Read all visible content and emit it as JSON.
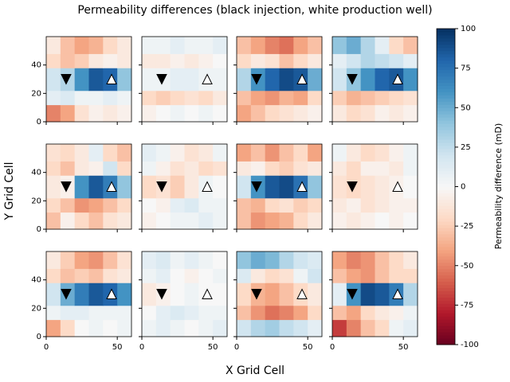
{
  "chart_data": {
    "type": "heatmap",
    "title": "Permeability differences (black injection, white production well)",
    "xlabel": "X Grid Cell",
    "ylabel": "Y Grid Cell",
    "xlim": [
      0,
      60
    ],
    "ylim": [
      0,
      60
    ],
    "xticks": [
      0,
      50
    ],
    "yticks": [
      0,
      20,
      40
    ],
    "x_edges": [
      0,
      10,
      20,
      30,
      40,
      50,
      60
    ],
    "y_edges": [
      0,
      12,
      22,
      38,
      48,
      60
    ],
    "colormap": "RdBu",
    "injection_well": {
      "x": 14,
      "y": 30,
      "color": "#000000"
    },
    "production_well": {
      "x": 46,
      "y": 30,
      "color": "#ffffff"
    },
    "colorbar": {
      "label": "Permeability difference (mD)",
      "lim": [
        -100,
        100
      ],
      "ticks": [
        -100,
        -75,
        -50,
        -25,
        0,
        25,
        50,
        75,
        100
      ]
    },
    "panels": [
      {
        "values": [
          [
            -50,
            -40,
            -15,
            -5,
            -10,
            -5
          ],
          [
            10,
            15,
            5,
            5,
            10,
            5
          ],
          [
            20,
            30,
            60,
            85,
            80,
            40
          ],
          [
            -20,
            -30,
            -25,
            -10,
            -5,
            -10
          ],
          [
            -10,
            -30,
            -40,
            -35,
            -20,
            -10
          ]
        ]
      },
      {
        "values": [
          [
            -5,
            0,
            5,
            0,
            5,
            0
          ],
          [
            -20,
            -25,
            -20,
            -15,
            -20,
            -10
          ],
          [
            5,
            5,
            10,
            10,
            5,
            5
          ],
          [
            -10,
            -10,
            -5,
            -10,
            -5,
            0
          ],
          [
            5,
            5,
            10,
            5,
            5,
            10
          ]
        ]
      },
      {
        "values": [
          [
            -40,
            -30,
            -20,
            -15,
            -10,
            -5
          ],
          [
            -30,
            -40,
            -45,
            -35,
            -40,
            -20
          ],
          [
            30,
            60,
            80,
            90,
            85,
            50
          ],
          [
            -20,
            -10,
            -15,
            -30,
            -20,
            -10
          ],
          [
            -30,
            -40,
            -50,
            -55,
            -40,
            -30
          ]
        ]
      },
      {
        "values": [
          [
            -10,
            -20,
            -15,
            -5,
            -10,
            -5
          ],
          [
            -25,
            -35,
            -30,
            -25,
            -20,
            -15
          ],
          [
            20,
            40,
            60,
            80,
            85,
            60
          ],
          [
            10,
            20,
            30,
            25,
            20,
            10
          ],
          [
            40,
            50,
            30,
            10,
            -20,
            -30
          ]
        ]
      },
      {
        "values": [
          [
            -30,
            -5,
            -20,
            -30,
            -15,
            -10
          ],
          [
            -20,
            -30,
            -45,
            -40,
            -30,
            -20
          ],
          [
            -10,
            -5,
            60,
            85,
            70,
            40
          ],
          [
            -20,
            -30,
            -10,
            -5,
            20,
            -20
          ],
          [
            -15,
            -20,
            -10,
            10,
            -20,
            -30
          ]
        ]
      },
      {
        "values": [
          [
            -5,
            0,
            5,
            5,
            10,
            5
          ],
          [
            0,
            -5,
            10,
            15,
            5,
            5
          ],
          [
            -20,
            -15,
            -25,
            -10,
            5,
            0
          ],
          [
            5,
            -5,
            -15,
            -10,
            -20,
            -15
          ],
          [
            10,
            5,
            -5,
            -15,
            -10,
            5
          ]
        ]
      },
      {
        "values": [
          [
            -30,
            -45,
            -40,
            -35,
            -20,
            -10
          ],
          [
            -30,
            -35,
            -20,
            -15,
            -25,
            -20
          ],
          [
            20,
            60,
            85,
            90,
            75,
            40
          ],
          [
            -10,
            -5,
            -20,
            -25,
            -15,
            -10
          ],
          [
            -40,
            -30,
            -45,
            -30,
            -20,
            -40
          ]
        ]
      },
      {
        "values": [
          [
            -5,
            -10,
            -5,
            0,
            -5,
            0
          ],
          [
            -10,
            -5,
            -15,
            -10,
            -5,
            -5
          ],
          [
            -15,
            -20,
            -15,
            -10,
            -5,
            0
          ],
          [
            -10,
            -20,
            -5,
            -5,
            -10,
            5
          ],
          [
            5,
            -10,
            -20,
            -15,
            -5,
            5
          ]
        ]
      },
      {
        "values": [
          [
            -40,
            -20,
            0,
            5,
            0,
            5
          ],
          [
            5,
            10,
            10,
            5,
            5,
            5
          ],
          [
            20,
            50,
            70,
            85,
            80,
            60
          ],
          [
            -20,
            -30,
            -25,
            -30,
            -15,
            -10
          ],
          [
            -10,
            -25,
            -40,
            -45,
            -30,
            -15
          ]
        ]
      },
      {
        "values": [
          [
            5,
            10,
            5,
            0,
            5,
            10
          ],
          [
            0,
            10,
            15,
            10,
            5,
            5
          ],
          [
            -10,
            -5,
            0,
            5,
            0,
            0
          ],
          [
            5,
            10,
            0,
            -5,
            0,
            5
          ],
          [
            10,
            15,
            5,
            10,
            5,
            0
          ]
        ]
      },
      {
        "values": [
          [
            20,
            30,
            35,
            25,
            20,
            10
          ],
          [
            -30,
            -45,
            -55,
            -50,
            -40,
            -20
          ],
          [
            -20,
            -35,
            -40,
            -30,
            -20,
            -10
          ],
          [
            15,
            -10,
            -20,
            -15,
            5,
            20
          ],
          [
            40,
            50,
            45,
            30,
            20,
            15
          ]
        ]
      },
      {
        "values": [
          [
            -70,
            -50,
            -30,
            -20,
            5,
            10
          ],
          [
            -30,
            -40,
            -20,
            -10,
            -5,
            5
          ],
          [
            10,
            60,
            90,
            85,
            70,
            30
          ],
          [
            -30,
            -40,
            -45,
            -30,
            -20,
            -20
          ],
          [
            -40,
            -50,
            -45,
            -30,
            -20,
            -10
          ]
        ]
      }
    ]
  }
}
